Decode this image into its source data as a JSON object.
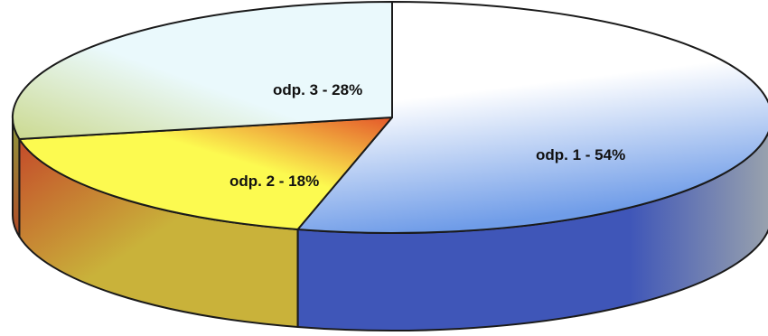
{
  "chart_data": {
    "type": "pie",
    "style": "3d",
    "slices": [
      {
        "label": "odp. 1 - 54%",
        "value": 54,
        "colors": {
          "top": "#ffffff",
          "top_edge": "#6f9ce8",
          "side": "#3f56b8",
          "side_edge": "#9aa3ad"
        }
      },
      {
        "label": "odp. 2 - 18%",
        "value": 18,
        "colors": {
          "top": "#fcfa50",
          "top_edge": "#e4572a",
          "side": "#c9b23a",
          "side_edge": "#c44a2a"
        }
      },
      {
        "label": "odp. 3 - 28%",
        "value": 28,
        "colors": {
          "top": "#eaf9fc",
          "top_edge": "#cbd98f",
          "side": "#8e9a3c",
          "side_edge": "#b04a28"
        }
      }
    ],
    "outline_color": "#1a1a1a"
  }
}
